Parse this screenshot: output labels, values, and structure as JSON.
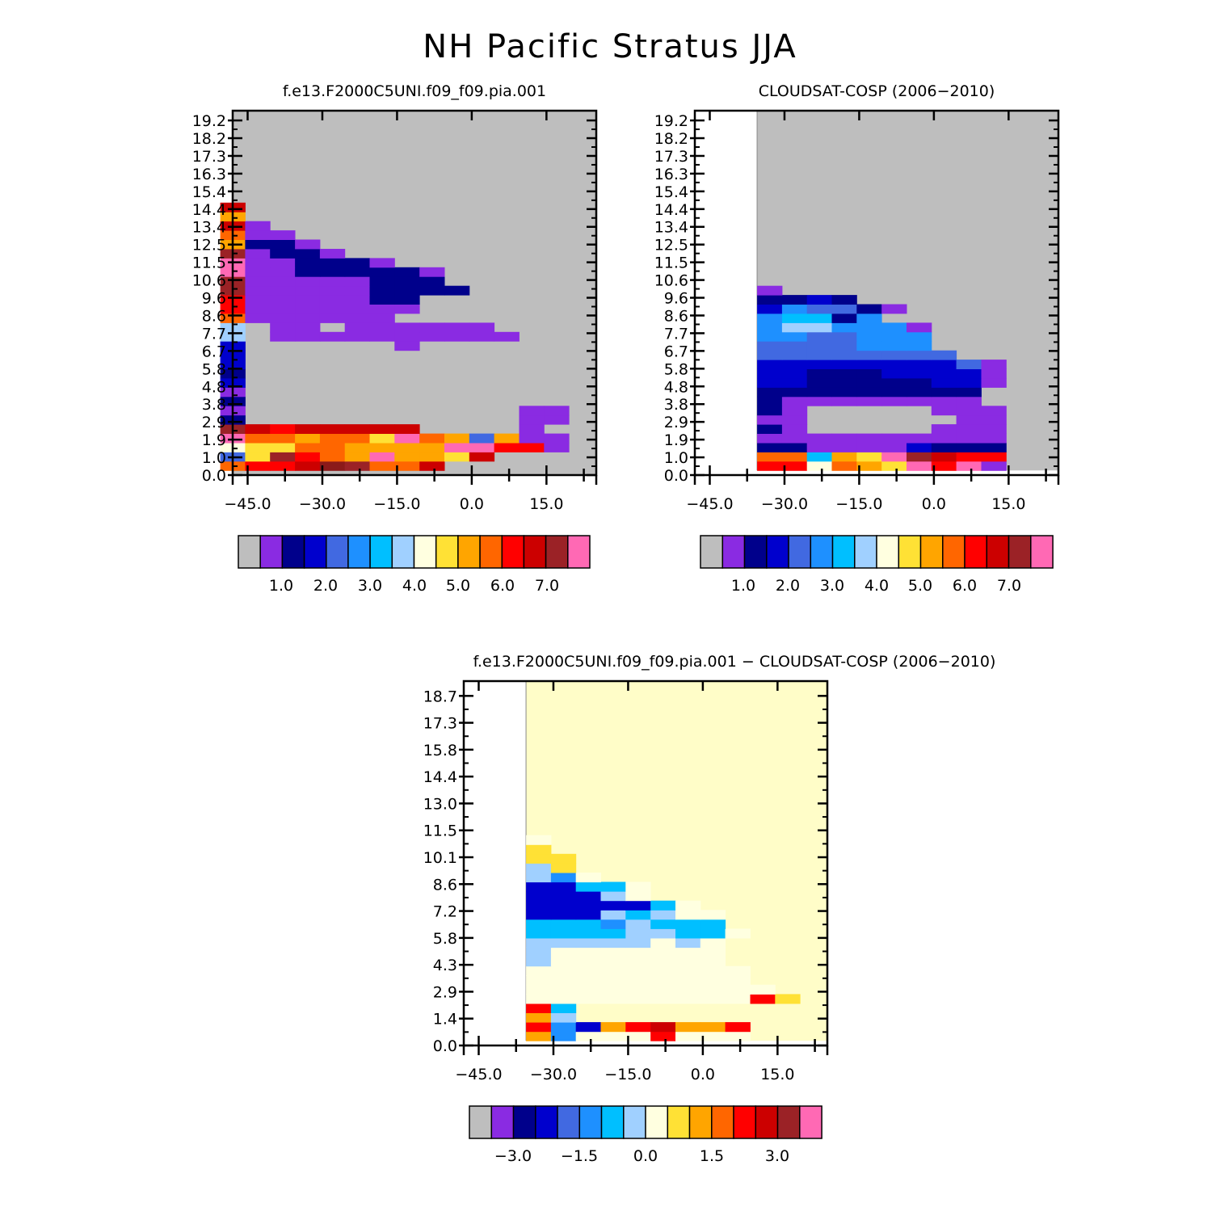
{
  "figure": {
    "title": "NH Pacific Stratus JJA"
  },
  "chart_data": [
    {
      "type": "heatmap",
      "title": "f.e13.F2000C5UNI.f09_f09.pia.001",
      "x": [
        -48,
        -43,
        -38,
        -33,
        -28,
        -23,
        -18,
        -13,
        -8,
        -3,
        2,
        7,
        12,
        17,
        22
      ],
      "y": [
        0.5,
        1.0,
        1.5,
        2.0,
        2.5,
        3.0,
        3.5,
        4.0,
        4.5,
        5.0,
        5.5,
        6.0,
        6.5,
        7.0,
        7.5,
        8.0,
        8.5,
        9.0,
        9.5,
        10.0,
        10.5,
        11.0,
        11.5,
        12.0,
        12.5,
        13.0,
        13.5,
        14.0,
        14.5,
        15.0,
        15.5,
        16.0,
        16.5,
        17.0,
        17.5,
        18.0,
        18.5,
        19.0,
        19.5,
        20.0
      ],
      "xlim": [
        -48,
        25
      ],
      "x_ticks": [
        "-45.0",
        "-30.0",
        "-15.0",
        "0.0",
        "15.0"
      ],
      "y_ticks": [
        "0.0",
        "1.0",
        "1.9",
        "2.9",
        "3.8",
        "4.8",
        "5.8",
        "6.7",
        "7.7",
        "8.6",
        "9.6",
        "10.6",
        "11.5",
        "12.5",
        "13.4",
        "14.4",
        "15.4",
        "16.3",
        "17.3",
        "18.2",
        "19.2"
      ],
      "colorbar_labels": [
        "1.0",
        "2.0",
        "3.0",
        "4.0",
        "5.0",
        "6.0",
        "7.0"
      ],
      "missing_color": "#bebebe",
      "rows": [
        "bccdkebbd0000",
        "jgecbhfhhgd000",
        "pqgbbhhhhffcc1",
        "fibhiigfihjh11",
        "edcddddd00001",
        "20000000000011",
        "10000000000011",
        "20000000000000",
        "1000000000000",
        "3000000000000",
        "20000000000000",
        "300000000000000",
        "300000000000000",
        "3000000100000",
        "70111111111100",
        "7011011111100",
        "b111111000000",
        "c111111100000",
        "c111112200000",
        "e11111222200",
        "e1111122200",
        "f112222210",
        "f112221",
        "e1221",
        "h221",
        "i11",
        "d1",
        "h",
        "d",
        "00000"
      ]
    },
    {
      "type": "heatmap",
      "title": "CLOUDSAT-COSP (2006-2010)",
      "x": [
        -33,
        -28,
        -23,
        -18,
        -13,
        -8,
        -3,
        2,
        7,
        12,
        17,
        22
      ],
      "y": [
        0.5,
        1.0,
        1.5,
        2.0,
        2.5,
        3.0,
        3.5,
        4.0,
        4.5,
        5.0,
        5.5,
        6.0,
        6.5,
        7.0,
        7.5,
        8.0,
        8.5,
        9.0,
        9.5,
        10.0,
        10.5,
        11.0,
        11.5,
        12.0,
        12.5,
        13.0,
        13.5,
        14.0,
        14.5,
        15.0,
        15.5,
        16.0,
        16.5,
        17.0,
        17.5,
        18.0,
        18.5,
        19.0,
        19.5,
        20.0
      ],
      "xlim": [
        -48,
        25
      ],
      "x_ticks": [
        "-45.0",
        "-30.0",
        "-15.0",
        "0.0",
        "15.0"
      ],
      "y_ticks": [
        "0.0",
        "1.0",
        "1.9",
        "2.9",
        "3.8",
        "4.8",
        "5.8",
        "6.7",
        "7.7",
        "8.6",
        "9.6",
        "10.6",
        "11.5",
        "12.5",
        "13.4",
        "14.4",
        "15.4",
        "16.3",
        "17.3",
        "18.2",
        "19.2"
      ],
      "colorbar_labels": [
        "1.0",
        "2.0",
        "3.0",
        "4.0",
        "5.0",
        "6.0",
        "7.0"
      ],
      "missing_color": "#bebebe",
      "rows": [
        "mmkjhgfcf10",
        "jjihgfedcc0",
        "2211113222",
        "11111111110",
        "21000001110",
        "11000000110",
        "2100000111",
        "211111111",
        "222222222",
        "3322222331",
        "3322233331",
        "3333333341",
        "4444444400",
        "4444555000",
        "5544555000",
        "5775551000",
        "5662500000",
        "3544210000",
        "2232",
        "100"
      ]
    },
    {
      "type": "heatmap",
      "title": "f.e13.F2000C5UNI.f09_f09.pia.001 - CLOUDSAT-COSP (2006-2010)",
      "x": [
        -33,
        -28,
        -23,
        -18,
        -13,
        -8,
        -3,
        2,
        7,
        12,
        17,
        22
      ],
      "y": [
        0.5,
        1.0,
        1.5,
        2.0,
        2.5,
        3.0,
        3.5,
        4.0,
        4.5,
        5.0,
        5.5,
        6.0,
        6.5,
        7.0,
        7.5,
        8.0,
        8.5,
        9.0,
        9.5,
        10.0,
        10.5,
        11.0,
        11.5,
        12.0,
        12.5,
        13.0,
        13.5,
        14.0,
        14.5,
        15.0,
        15.5,
        16.0,
        16.5,
        17.0,
        17.5,
        18.0,
        18.5,
        19.0
      ],
      "xlim": [
        -48,
        25
      ],
      "x_ticks": [
        "-45.0",
        "-30.0",
        "-15.0",
        "0.0",
        "15.0"
      ],
      "y_ticks": [
        "0.0",
        "1.4",
        "2.9",
        "4.3",
        "5.8",
        "7.2",
        "8.6",
        "10.1",
        "11.5",
        "13.0",
        "14.4",
        "15.8",
        "17.3",
        "18.7"
      ],
      "colorbar_labels": [
        "-3.0",
        "-1.5",
        "0.0",
        "1.5",
        "3.0"
      ],
      "missing_color": "#fffdc8",
      "rows": [
        "a58bbcbbb",
        "c53dfgddc",
        "d7",
        "f6",
        "bbbbbbbbbfi",
        "bbbbbbbbbb",
        "bbbbbbbbb",
        "bbbbbbbbb",
        "7bbbbbbb",
        "7bbbbbbb",
        "77777b7b",
        "66667766b",
        "66657666",
        "3337678b",
        "333336b",
        "3337b",
        "3366b",
        "75b",
        "7e",
        "ee",
        "e",
        "b"
      ]
    }
  ]
}
